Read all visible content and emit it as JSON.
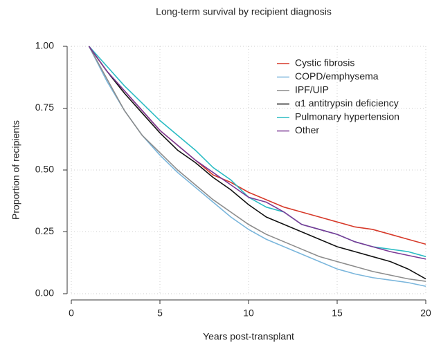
{
  "chart_data": {
    "type": "line",
    "title": "Long-term survival by recipient diagnosis",
    "x_label": "Years post-transplant",
    "y_label": "Proportion of recipients",
    "x": [
      1,
      2,
      3,
      4,
      5,
      6,
      7,
      8,
      9,
      10,
      11,
      12,
      13,
      14,
      15,
      16,
      17,
      18,
      19,
      20
    ],
    "series": [
      {
        "name": "Cystic fibrosis",
        "color": "#d73a2a",
        "values": [
          1.0,
          0.9,
          0.82,
          0.74,
          0.66,
          0.6,
          0.54,
          0.48,
          0.45,
          0.41,
          0.38,
          0.35,
          0.33,
          0.31,
          0.29,
          0.27,
          0.26,
          0.24,
          0.22,
          0.2
        ]
      },
      {
        "name": "COPD/emphysema",
        "color": "#7ab6dc",
        "values": [
          1.0,
          0.86,
          0.74,
          0.64,
          0.56,
          0.49,
          0.43,
          0.37,
          0.31,
          0.26,
          0.22,
          0.19,
          0.16,
          0.13,
          0.1,
          0.08,
          0.065,
          0.055,
          0.045,
          0.03
        ]
      },
      {
        "name": "IPF/UIP",
        "color": "#8c8c8c",
        "values": [
          1.0,
          0.87,
          0.74,
          0.64,
          0.57,
          0.5,
          0.44,
          0.38,
          0.33,
          0.28,
          0.24,
          0.21,
          0.18,
          0.15,
          0.13,
          0.11,
          0.09,
          0.075,
          0.06,
          0.05
        ]
      },
      {
        "name": "α1 antitrypsin deficiency",
        "color": "#111111",
        "values": [
          1.0,
          0.9,
          0.81,
          0.73,
          0.65,
          0.58,
          0.53,
          0.47,
          0.42,
          0.36,
          0.31,
          0.28,
          0.25,
          0.22,
          0.19,
          0.17,
          0.15,
          0.13,
          0.1,
          0.06
        ]
      },
      {
        "name": "Pulmonary hypertension",
        "color": "#2bbcc4",
        "values": [
          1.0,
          0.92,
          0.84,
          0.77,
          0.7,
          0.64,
          0.58,
          0.51,
          0.46,
          0.39,
          0.35,
          0.33,
          0.28,
          0.26,
          0.24,
          0.21,
          0.19,
          0.18,
          0.17,
          0.15
        ]
      },
      {
        "name": "Other",
        "color": "#7b3a96",
        "values": [
          1.0,
          0.9,
          0.82,
          0.74,
          0.66,
          0.6,
          0.54,
          0.49,
          0.44,
          0.39,
          0.37,
          0.33,
          0.28,
          0.26,
          0.24,
          0.21,
          0.19,
          0.17,
          0.155,
          0.14
        ]
      }
    ],
    "xlim": [
      0,
      20
    ],
    "xticks": [
      0,
      5,
      10,
      15,
      20
    ],
    "ylim": [
      0,
      1
    ],
    "yticks": [
      {
        "value": 0,
        "label": "0.00"
      },
      {
        "value": 0.25,
        "label": "0.25"
      },
      {
        "value": 0.5,
        "label": "0.50"
      },
      {
        "value": 0.75,
        "label": "0.75"
      },
      {
        "value": 1,
        "label": "1.00"
      }
    ],
    "grid": true,
    "legend": "top-right"
  }
}
